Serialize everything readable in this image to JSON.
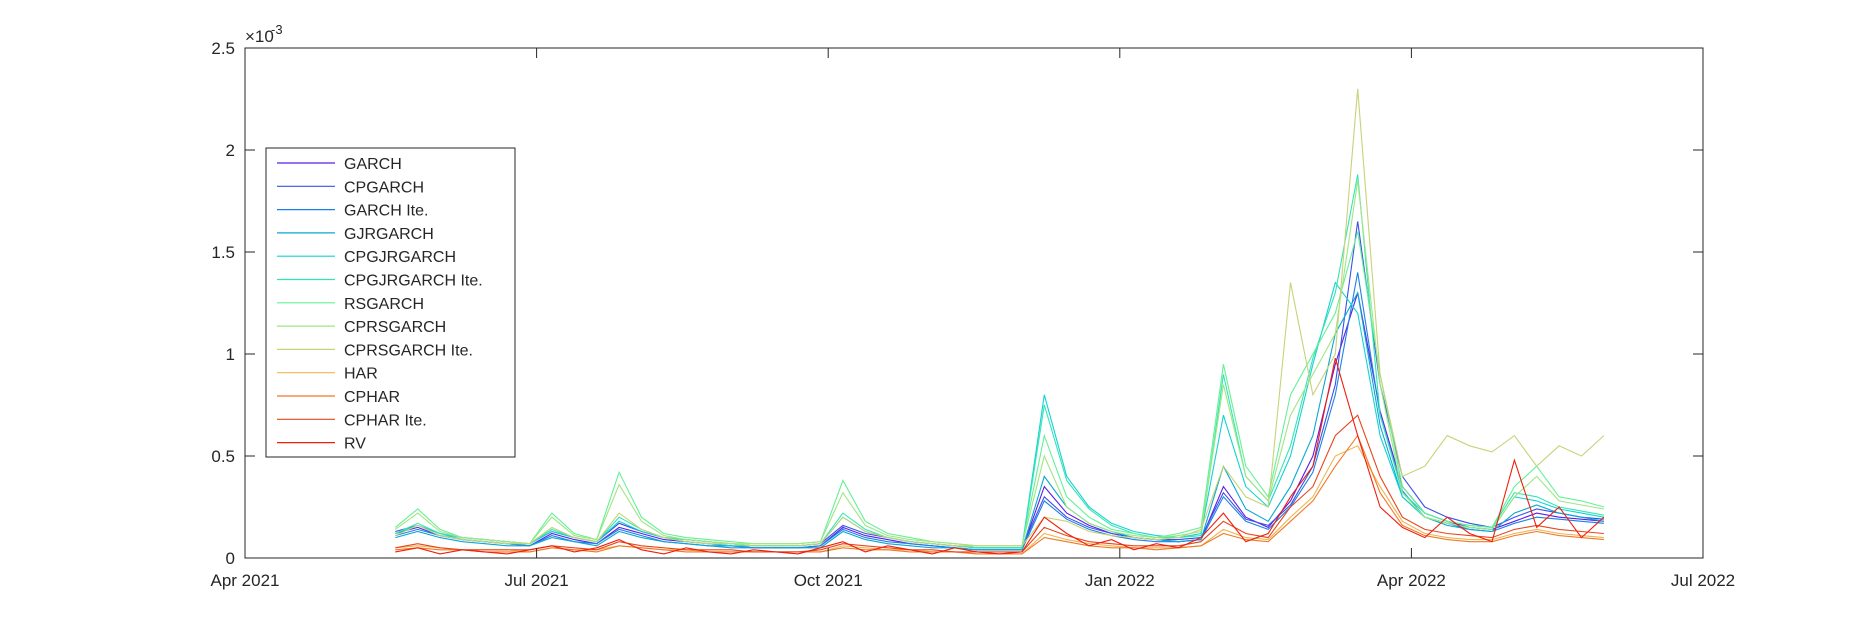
{
  "chart_data": {
    "type": "line",
    "title": "",
    "xlabel": "",
    "ylabel": "",
    "y_exponent_label": "×10",
    "y_exponent_power": "-3",
    "x_ticks": [
      "Apr 2021",
      "Jul 2021",
      "Oct 2021",
      "Jan 2022",
      "Apr 2022",
      "Jul 2022"
    ],
    "y_ticks": [
      "0",
      "0.5",
      "1",
      "1.5",
      "2",
      "2.5"
    ],
    "xlim": [
      "2021-04-01",
      "2022-07-01"
    ],
    "ylim": [
      0,
      2.5
    ],
    "grid": false,
    "legend_position": "left",
    "x": [
      "2021-05-18",
      "2021-05-25",
      "2021-06-01",
      "2021-06-08",
      "2021-06-15",
      "2021-06-22",
      "2021-06-29",
      "2021-07-06",
      "2021-07-13",
      "2021-07-20",
      "2021-07-27",
      "2021-08-03",
      "2021-08-10",
      "2021-08-17",
      "2021-08-24",
      "2021-08-31",
      "2021-09-07",
      "2021-09-14",
      "2021-09-21",
      "2021-09-28",
      "2021-10-05",
      "2021-10-12",
      "2021-10-19",
      "2021-10-26",
      "2021-11-02",
      "2021-11-09",
      "2021-11-16",
      "2021-11-23",
      "2021-11-30",
      "2021-12-07",
      "2021-12-14",
      "2021-12-21",
      "2021-12-28",
      "2022-01-04",
      "2022-01-11",
      "2022-01-18",
      "2022-01-25",
      "2022-02-01",
      "2022-02-08",
      "2022-02-15",
      "2022-02-22",
      "2022-03-01",
      "2022-03-08",
      "2022-03-15",
      "2022-03-22",
      "2022-03-29",
      "2022-04-05",
      "2022-04-12",
      "2022-04-19",
      "2022-04-26",
      "2022-05-03",
      "2022-05-10",
      "2022-05-17",
      "2022-05-24",
      "2022-05-31"
    ],
    "series": [
      {
        "name": "GARCH",
        "color": "#5a1ee6",
        "values": [
          0.12,
          0.15,
          0.11,
          0.09,
          0.08,
          0.07,
          0.06,
          0.12,
          0.09,
          0.07,
          0.15,
          0.12,
          0.09,
          0.08,
          0.07,
          0.06,
          0.05,
          0.05,
          0.05,
          0.06,
          0.15,
          0.11,
          0.09,
          0.07,
          0.06,
          0.05,
          0.04,
          0.04,
          0.04,
          0.35,
          0.22,
          0.16,
          0.12,
          0.1,
          0.09,
          0.08,
          0.09,
          0.35,
          0.2,
          0.15,
          0.28,
          0.5,
          0.95,
          1.3,
          0.72,
          0.35,
          0.22,
          0.18,
          0.15,
          0.14,
          0.18,
          0.22,
          0.2,
          0.19,
          0.18
        ]
      },
      {
        "name": "CPGARCH",
        "color": "#3c50e8",
        "values": [
          0.13,
          0.16,
          0.12,
          0.1,
          0.09,
          0.08,
          0.07,
          0.13,
          0.1,
          0.08,
          0.17,
          0.13,
          0.1,
          0.09,
          0.08,
          0.07,
          0.06,
          0.06,
          0.06,
          0.07,
          0.16,
          0.12,
          0.1,
          0.08,
          0.07,
          0.06,
          0.05,
          0.05,
          0.05,
          0.3,
          0.2,
          0.15,
          0.12,
          0.1,
          0.09,
          0.09,
          0.1,
          0.32,
          0.19,
          0.16,
          0.26,
          0.45,
          0.85,
          1.65,
          0.85,
          0.4,
          0.25,
          0.2,
          0.17,
          0.15,
          0.2,
          0.24,
          0.22,
          0.2,
          0.19
        ]
      },
      {
        "name": "GARCH Ite.",
        "color": "#1e80e6",
        "values": [
          0.11,
          0.14,
          0.11,
          0.09,
          0.08,
          0.07,
          0.06,
          0.11,
          0.08,
          0.07,
          0.14,
          0.11,
          0.08,
          0.07,
          0.06,
          0.06,
          0.05,
          0.05,
          0.05,
          0.06,
          0.14,
          0.1,
          0.08,
          0.07,
          0.06,
          0.05,
          0.04,
          0.04,
          0.04,
          0.28,
          0.19,
          0.14,
          0.11,
          0.09,
          0.08,
          0.08,
          0.09,
          0.3,
          0.18,
          0.14,
          0.25,
          0.42,
          0.8,
          1.4,
          0.7,
          0.33,
          0.2,
          0.17,
          0.14,
          0.13,
          0.17,
          0.2,
          0.19,
          0.18,
          0.17
        ]
      },
      {
        "name": "GJRGARCH",
        "color": "#0aa8d2",
        "values": [
          0.1,
          0.13,
          0.1,
          0.08,
          0.07,
          0.06,
          0.06,
          0.1,
          0.08,
          0.06,
          0.13,
          0.1,
          0.08,
          0.07,
          0.06,
          0.05,
          0.05,
          0.05,
          0.05,
          0.05,
          0.13,
          0.09,
          0.07,
          0.06,
          0.05,
          0.05,
          0.04,
          0.04,
          0.04,
          0.4,
          0.25,
          0.17,
          0.13,
          0.1,
          0.09,
          0.08,
          0.09,
          0.45,
          0.24,
          0.18,
          0.35,
          0.6,
          1.1,
          1.3,
          0.65,
          0.3,
          0.2,
          0.16,
          0.14,
          0.13,
          0.22,
          0.26,
          0.22,
          0.2,
          0.18
        ]
      },
      {
        "name": "CPGJRGARCH",
        "color": "#14d2d2",
        "values": [
          0.12,
          0.16,
          0.12,
          0.09,
          0.08,
          0.07,
          0.07,
          0.13,
          0.1,
          0.08,
          0.18,
          0.13,
          0.1,
          0.08,
          0.07,
          0.06,
          0.06,
          0.06,
          0.06,
          0.07,
          0.2,
          0.13,
          0.1,
          0.08,
          0.07,
          0.06,
          0.05,
          0.05,
          0.05,
          0.8,
          0.4,
          0.25,
          0.17,
          0.13,
          0.11,
          0.1,
          0.12,
          0.7,
          0.35,
          0.25,
          0.5,
          0.95,
          1.35,
          1.2,
          0.6,
          0.3,
          0.2,
          0.17,
          0.15,
          0.14,
          0.3,
          0.28,
          0.24,
          0.22,
          0.2
        ]
      },
      {
        "name": "CPGJRGARCH Ite.",
        "color": "#32e6b4",
        "values": [
          0.12,
          0.17,
          0.12,
          0.1,
          0.09,
          0.08,
          0.07,
          0.14,
          0.1,
          0.08,
          0.2,
          0.14,
          0.1,
          0.09,
          0.08,
          0.07,
          0.06,
          0.06,
          0.06,
          0.07,
          0.22,
          0.14,
          0.1,
          0.08,
          0.07,
          0.06,
          0.05,
          0.05,
          0.05,
          0.75,
          0.38,
          0.24,
          0.16,
          0.12,
          0.1,
          0.1,
          0.11,
          0.9,
          0.4,
          0.28,
          0.55,
          0.98,
          1.3,
          1.88,
          0.7,
          0.32,
          0.22,
          0.18,
          0.16,
          0.15,
          0.32,
          0.3,
          0.25,
          0.23,
          0.21
        ]
      },
      {
        "name": "RSGARCH",
        "color": "#64f096",
        "values": [
          0.15,
          0.24,
          0.14,
          0.1,
          0.09,
          0.08,
          0.07,
          0.22,
          0.12,
          0.09,
          0.42,
          0.2,
          0.12,
          0.1,
          0.09,
          0.08,
          0.07,
          0.07,
          0.07,
          0.08,
          0.38,
          0.18,
          0.12,
          0.1,
          0.08,
          0.07,
          0.06,
          0.06,
          0.06,
          0.6,
          0.3,
          0.2,
          0.14,
          0.12,
          0.1,
          0.12,
          0.15,
          0.95,
          0.45,
          0.3,
          0.8,
          1.0,
          1.2,
          1.6,
          0.9,
          0.35,
          0.22,
          0.18,
          0.16,
          0.15,
          0.35,
          0.45,
          0.3,
          0.28,
          0.25
        ]
      },
      {
        "name": "CPRSGARCH",
        "color": "#a0e682",
        "values": [
          0.14,
          0.22,
          0.13,
          0.1,
          0.09,
          0.08,
          0.07,
          0.2,
          0.11,
          0.09,
          0.36,
          0.18,
          0.11,
          0.09,
          0.08,
          0.07,
          0.07,
          0.07,
          0.07,
          0.08,
          0.32,
          0.16,
          0.11,
          0.09,
          0.08,
          0.07,
          0.06,
          0.06,
          0.06,
          0.5,
          0.25,
          0.17,
          0.13,
          0.11,
          0.1,
          0.11,
          0.13,
          0.85,
          0.4,
          0.28,
          0.7,
          0.9,
          1.1,
          1.85,
          0.85,
          0.32,
          0.2,
          0.17,
          0.15,
          0.14,
          0.3,
          0.4,
          0.28,
          0.26,
          0.24
        ]
      },
      {
        "name": "CPRSGARCH Ite.",
        "color": "#c8d278",
        "values": [
          0.11,
          0.16,
          0.11,
          0.09,
          0.08,
          0.07,
          0.07,
          0.15,
          0.1,
          0.08,
          0.22,
          0.14,
          0.1,
          0.08,
          0.07,
          0.07,
          0.06,
          0.06,
          0.06,
          0.07,
          0.2,
          0.13,
          0.1,
          0.08,
          0.07,
          0.06,
          0.06,
          0.06,
          0.06,
          0.2,
          0.18,
          0.13,
          0.11,
          0.1,
          0.09,
          0.1,
          0.14,
          0.45,
          0.3,
          0.25,
          1.35,
          0.8,
          1.0,
          2.3,
          0.9,
          0.4,
          0.45,
          0.6,
          0.55,
          0.52,
          0.6,
          0.45,
          0.55,
          0.5,
          0.6
        ]
      },
      {
        "name": "HAR",
        "color": "#f0b450",
        "values": [
          0.05,
          0.06,
          0.05,
          0.04,
          0.04,
          0.04,
          0.03,
          0.05,
          0.04,
          0.04,
          0.06,
          0.05,
          0.04,
          0.04,
          0.03,
          0.03,
          0.03,
          0.03,
          0.03,
          0.03,
          0.06,
          0.05,
          0.04,
          0.04,
          0.03,
          0.03,
          0.02,
          0.02,
          0.02,
          0.12,
          0.09,
          0.07,
          0.06,
          0.05,
          0.05,
          0.05,
          0.06,
          0.14,
          0.1,
          0.09,
          0.2,
          0.3,
          0.5,
          0.55,
          0.35,
          0.18,
          0.12,
          0.1,
          0.09,
          0.09,
          0.12,
          0.14,
          0.12,
          0.11,
          0.1
        ]
      },
      {
        "name": "CPHAR",
        "color": "#f07828",
        "values": [
          0.04,
          0.05,
          0.04,
          0.04,
          0.03,
          0.03,
          0.03,
          0.05,
          0.04,
          0.03,
          0.06,
          0.05,
          0.04,
          0.03,
          0.03,
          0.03,
          0.03,
          0.03,
          0.03,
          0.03,
          0.05,
          0.04,
          0.04,
          0.03,
          0.03,
          0.03,
          0.02,
          0.02,
          0.02,
          0.1,
          0.08,
          0.06,
          0.05,
          0.05,
          0.04,
          0.05,
          0.06,
          0.12,
          0.09,
          0.08,
          0.18,
          0.28,
          0.45,
          0.6,
          0.32,
          0.16,
          0.11,
          0.09,
          0.08,
          0.08,
          0.11,
          0.13,
          0.11,
          0.1,
          0.09
        ]
      },
      {
        "name": "CPHAR Ite.",
        "color": "#e6461e",
        "values": [
          0.05,
          0.07,
          0.05,
          0.04,
          0.04,
          0.04,
          0.04,
          0.06,
          0.05,
          0.04,
          0.08,
          0.06,
          0.05,
          0.04,
          0.04,
          0.04,
          0.03,
          0.03,
          0.03,
          0.04,
          0.07,
          0.06,
          0.05,
          0.04,
          0.04,
          0.03,
          0.03,
          0.03,
          0.03,
          0.15,
          0.11,
          0.08,
          0.07,
          0.06,
          0.06,
          0.06,
          0.08,
          0.18,
          0.12,
          0.1,
          0.25,
          0.35,
          0.6,
          0.7,
          0.4,
          0.2,
          0.14,
          0.12,
          0.11,
          0.1,
          0.14,
          0.16,
          0.14,
          0.13,
          0.12
        ]
      },
      {
        "name": "RV",
        "color": "#f01e0a",
        "values": [
          0.03,
          0.05,
          0.02,
          0.04,
          0.03,
          0.02,
          0.04,
          0.06,
          0.03,
          0.05,
          0.09,
          0.04,
          0.02,
          0.05,
          0.03,
          0.02,
          0.04,
          0.03,
          0.02,
          0.05,
          0.08,
          0.03,
          0.06,
          0.04,
          0.02,
          0.05,
          0.03,
          0.02,
          0.03,
          0.2,
          0.12,
          0.06,
          0.09,
          0.04,
          0.07,
          0.05,
          0.1,
          0.22,
          0.08,
          0.12,
          0.3,
          0.45,
          0.98,
          0.6,
          0.25,
          0.15,
          0.1,
          0.2,
          0.12,
          0.08,
          0.48,
          0.15,
          0.25,
          0.1,
          0.2
        ]
      }
    ]
  }
}
